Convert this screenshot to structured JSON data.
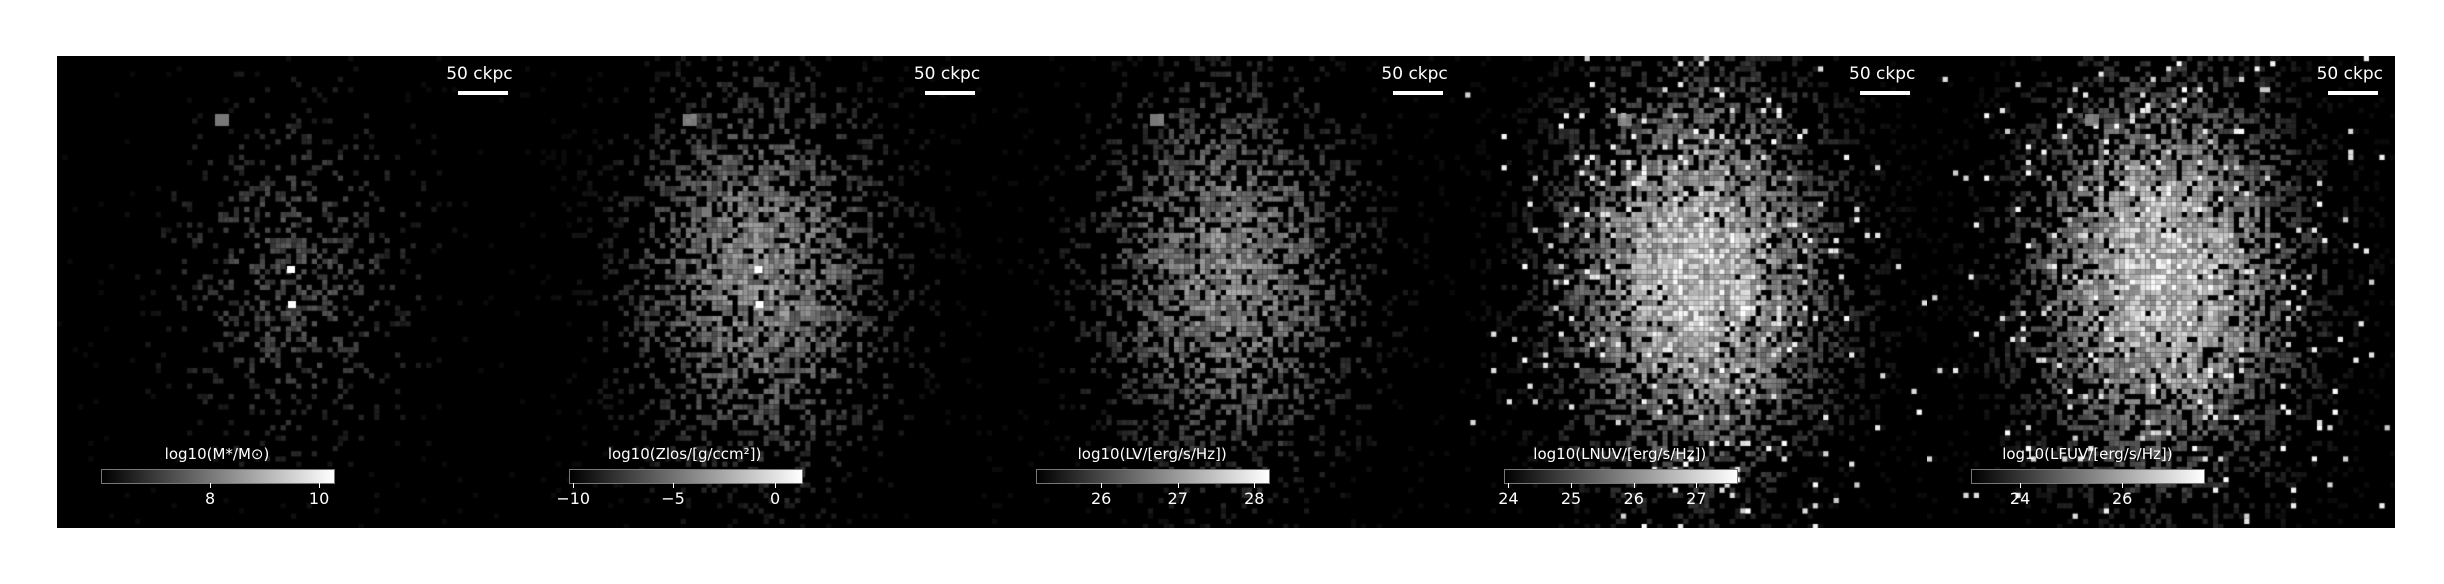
{
  "panels": [
    {
      "scale_label": "50 ckpc",
      "colorbar_label": "log10(M*/M⊙)",
      "ticks": [
        {
          "label": "8",
          "frac": 0.47
        },
        {
          "label": "10",
          "frac": 0.94
        }
      ],
      "brightness": "low",
      "cores": 2
    },
    {
      "scale_label": "50 ckpc",
      "colorbar_label": "log10(Zlos/[g/ccm²])",
      "ticks": [
        {
          "label": "−10",
          "frac": 0.02
        },
        {
          "label": "−5",
          "frac": 0.45
        },
        {
          "label": "0",
          "frac": 0.89
        }
      ],
      "brightness": "medium",
      "cores": 2
    },
    {
      "scale_label": "50 ckpc",
      "colorbar_label": "log10(LV/[erg/s/Hz])",
      "ticks": [
        {
          "label": "26",
          "frac": 0.28
        },
        {
          "label": "27",
          "frac": 0.61
        },
        {
          "label": "28",
          "frac": 0.94
        }
      ],
      "brightness": "medium",
      "cores": 0
    },
    {
      "scale_label": "50 ckpc",
      "colorbar_label": "log10(LNUV/[erg/s/Hz])",
      "ticks": [
        {
          "label": "24",
          "frac": 0.02
        },
        {
          "label": "25",
          "frac": 0.29
        },
        {
          "label": "26",
          "frac": 0.56
        },
        {
          "label": "27",
          "frac": 0.83
        }
      ],
      "brightness": "high",
      "cores": 0
    },
    {
      "scale_label": "50 ckpc",
      "colorbar_label": "log10(LFUV/[erg/s/Hz])",
      "ticks": [
        {
          "label": "24",
          "frac": 0.21
        },
        {
          "label": "26",
          "frac": 0.65
        }
      ],
      "brightness": "high",
      "cores": 0
    }
  ]
}
